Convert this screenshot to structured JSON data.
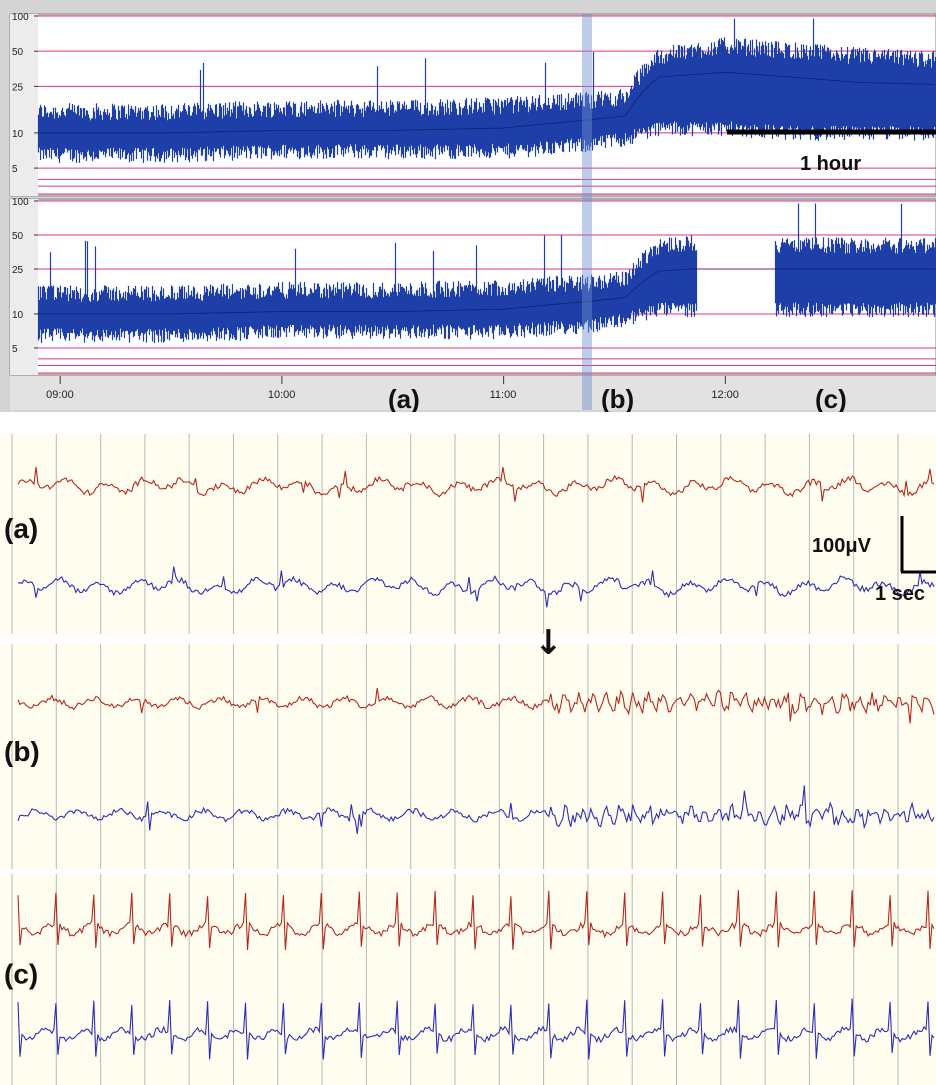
{
  "chart_data": [
    {
      "type": "line",
      "description_panel": "trend-channel-1",
      "y_scale": "log",
      "ylim": [
        3,
        100
      ],
      "y_ticks": [
        "100",
        "50",
        "25",
        "10",
        "5"
      ],
      "reference_lines": [
        100,
        50,
        25,
        10,
        5,
        4,
        3.5,
        3,
        2.6
      ],
      "x_ticks": [
        "09:00",
        "10:00",
        "11:00",
        "12:00"
      ],
      "x_range_hours": [
        8.9,
        12.95
      ],
      "series": [
        {
          "color": "#1f3fa8",
          "x_hours": [
            8.9,
            9.5,
            10.0,
            10.5,
            11.0,
            11.4,
            11.55,
            11.7,
            12.0,
            12.3,
            12.6,
            12.95
          ],
          "median": [
            10,
            10,
            10.5,
            10.5,
            11,
            13,
            14,
            30,
            33,
            30,
            27,
            26
          ],
          "low": [
            6.5,
            6.5,
            7,
            7,
            7,
            8,
            9,
            11,
            11,
            10,
            10,
            10
          ],
          "high": [
            15,
            15,
            16,
            16,
            17,
            19,
            20,
            45,
            55,
            50,
            45,
            42
          ]
        }
      ],
      "annotations": {
        "scale_bar": "1 hour"
      }
    },
    {
      "type": "line",
      "description_panel": "trend-channel-2",
      "y_scale": "log",
      "ylim": [
        3,
        100
      ],
      "y_ticks": [
        "100",
        "50",
        "25",
        "10",
        "5"
      ],
      "reference_lines": [
        100,
        50,
        25,
        10,
        5,
        4,
        3.5,
        3,
        2.6
      ],
      "x_ticks": [
        "09:00",
        "10:00",
        "11:00",
        "12:00"
      ],
      "x_range_hours": [
        8.9,
        12.95
      ],
      "series": [
        {
          "color": "#1f3fa8",
          "x_hours": [
            8.9,
            9.5,
            10.0,
            10.5,
            11.0,
            11.4,
            11.55,
            11.7,
            11.85,
            12.25,
            12.5,
            12.95
          ],
          "median": [
            10,
            10,
            10.5,
            10.5,
            11,
            13,
            14,
            24,
            25,
            25,
            25,
            25
          ],
          "low": [
            6.5,
            6.5,
            7,
            7,
            7,
            8,
            9,
            11,
            11,
            11,
            11,
            11
          ],
          "high": [
            15,
            15,
            16,
            16,
            17,
            19,
            20,
            40,
            42,
            40,
            40,
            40
          ],
          "gap_hours": [
            11.87,
            12.22
          ]
        }
      ]
    }
  ],
  "time_axis": {
    "ticks": [
      "09:00",
      "10:00",
      "11:00",
      "12:00"
    ],
    "segment_labels": [
      "(a)",
      "(b)",
      "(c)"
    ]
  },
  "eeg_segments": [
    {
      "label": "(a)",
      "channels": [
        {
          "color": "#b22a1e",
          "pattern": "background-slow"
        },
        {
          "color": "#2e2db8",
          "pattern": "background-slow"
        }
      ],
      "scale_bar": {
        "amplitude": "100μV",
        "time": "1 sec"
      }
    },
    {
      "label": "(b)",
      "arrow": "↓",
      "channels": [
        {
          "color": "#b22a1e",
          "pattern": "onset-fast"
        },
        {
          "color": "#2e2db8",
          "pattern": "onset-fast"
        }
      ]
    },
    {
      "label": "(c)",
      "channels": [
        {
          "color": "#b22a1e",
          "pattern": "spike-wave"
        },
        {
          "color": "#2e2db8",
          "pattern": "spike-wave"
        }
      ]
    }
  ],
  "colors": {
    "trend_fill": "#1f3fa8",
    "reference_line": "#e0308a",
    "median_line": "#0a0a4a",
    "eeg_red": "#b22a1e",
    "eeg_blue": "#2e2db8",
    "eeg_background": "#fffdf0",
    "trend_frame": "#c8c8c8"
  }
}
